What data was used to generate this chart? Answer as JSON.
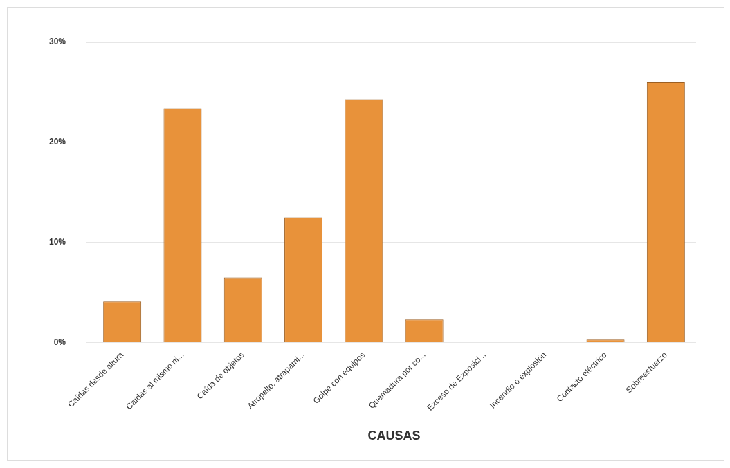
{
  "chart_data": {
    "type": "bar",
    "xlabel": "CAUSAS",
    "categories": [
      "Caídas desde altura",
      "Caídas al mismo ni...",
      "Caída de objetos",
      "Atropello, atrapami...",
      "Golpe con equipos",
      "Quemadura por co...",
      "Exceso de Exposici...",
      "Incendio o explosión",
      "Contacto eléctrico",
      "Sobreesfuerzo"
    ],
    "values": [
      4.1,
      23.4,
      6.5,
      12.5,
      24.3,
      2.3,
      0,
      0,
      0.3,
      26
    ],
    "color": "#e8923a",
    "ylim": [
      0,
      30
    ],
    "yticks": [
      {
        "value": 0,
        "label": "0%"
      },
      {
        "value": 10,
        "label": "10%"
      },
      {
        "value": 20,
        "label": "20%"
      },
      {
        "value": 30,
        "label": "30%"
      }
    ],
    "grid": "y",
    "legend": false
  }
}
